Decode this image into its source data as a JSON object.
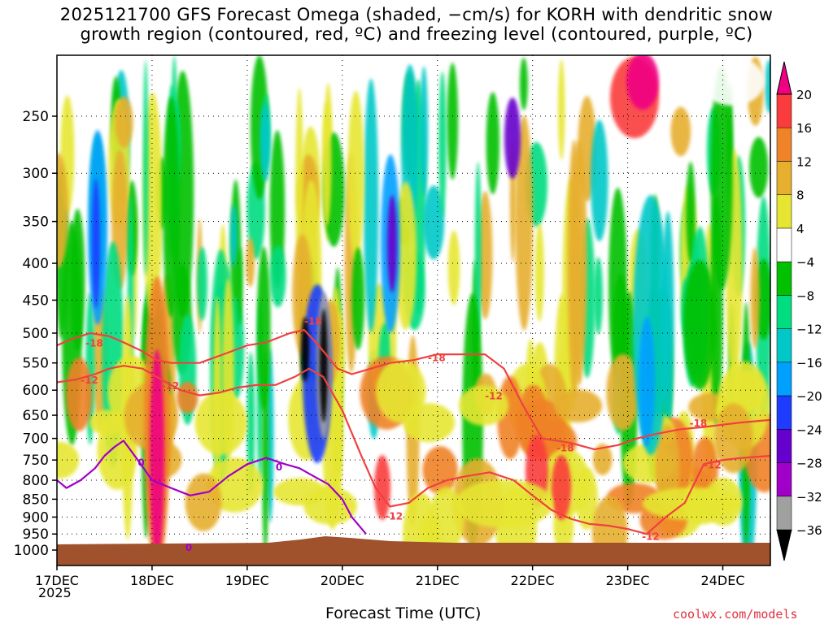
{
  "chart_data": {
    "type": "heatmap",
    "title_line1": "2025121700 GFS Forecast Omega (shaded, −cm/s) for KORH with dendritic snow",
    "title_line2": "growth region (contoured, red, ºC) and freezing level (contoured, purple, ºC)",
    "xlabel": "Forecast Time (UTC)",
    "ylabel": "",
    "year_label": "2025",
    "credit": "coolwx.com/models",
    "x_ticks": [
      "17DEC",
      "18DEC",
      "19DEC",
      "20DEC",
      "21DEC",
      "22DEC",
      "23DEC",
      "24DEC"
    ],
    "y_ticks": [
      250,
      300,
      350,
      400,
      450,
      500,
      550,
      600,
      650,
      700,
      750,
      800,
      850,
      900,
      950,
      1000
    ],
    "ylim": [
      200,
      1000
    ],
    "xlim": [
      0,
      7.5
    ],
    "colorbar_levels": [
      -36,
      -32,
      -28,
      -24,
      -20,
      -16,
      -12,
      -8,
      -4,
      4,
      8,
      12,
      16,
      20
    ],
    "colorbar_labels": [
      "20",
      "16",
      "12",
      "8",
      "4",
      "−4",
      "−8",
      "−12",
      "−16",
      "−20",
      "−24",
      "−28",
      "−32",
      "−36"
    ],
    "colorbar_colors": [
      "#000000",
      "#a0a0a0",
      "#a000c8",
      "#6600cc",
      "#1e3cff",
      "#00a0ff",
      "#00c8c8",
      "#00dc80",
      "#00c000",
      "#ffffff",
      "#e6e632",
      "#e6af2d",
      "#f08228",
      "#fa3c3c",
      "#f00082"
    ],
    "contour_labels": [
      {
        "text": "-18",
        "x": 0.3,
        "y": 515
      },
      {
        "text": "-12",
        "x": 0.25,
        "y": 580
      },
      {
        "text": "-12",
        "x": 1.1,
        "y": 590
      },
      {
        "text": "-18",
        "x": 2.6,
        "y": 480
      },
      {
        "text": "-18",
        "x": 3.9,
        "y": 540
      },
      {
        "text": "-12",
        "x": 4.5,
        "y": 610
      },
      {
        "text": "-18",
        "x": 5.25,
        "y": 720
      },
      {
        "text": "-12",
        "x": 3.45,
        "y": 895
      },
      {
        "text": "-12",
        "x": 6.15,
        "y": 955
      },
      {
        "text": "-18",
        "x": 6.65,
        "y": 665
      },
      {
        "text": "-12",
        "x": 6.8,
        "y": 760
      },
      {
        "text": "0",
        "x": 0.85,
        "y": 755
      },
      {
        "text": "0",
        "x": 2.3,
        "y": 765
      },
      {
        "text": "0",
        "x": 1.35,
        "y": 990
      }
    ],
    "series": [
      {
        "name": "-18C contour (dendritic upper)",
        "color": "#f04040",
        "x": [
          0.0,
          0.15,
          0.35,
          0.55,
          0.7,
          0.9,
          1.05,
          1.2,
          1.5,
          1.75,
          2.0,
          2.2,
          2.45,
          2.6,
          2.75,
          2.95,
          3.1,
          3.3,
          3.5,
          3.75,
          4.0,
          4.25,
          4.5,
          4.7,
          4.9,
          5.1,
          5.4,
          5.65,
          5.9,
          6.1,
          6.3,
          6.55,
          6.8,
          7.0,
          7.2,
          7.5
        ],
        "y": [
          520,
          510,
          500,
          505,
          515,
          530,
          545,
          550,
          550,
          535,
          520,
          515,
          500,
          495,
          520,
          560,
          570,
          560,
          550,
          545,
          535,
          535,
          535,
          560,
          630,
          700,
          710,
          725,
          715,
          700,
          690,
          680,
          675,
          670,
          665,
          660
        ]
      },
      {
        "name": "-12C contour (dendritic lower)",
        "color": "#f04040",
        "x": [
          0.0,
          0.2,
          0.4,
          0.55,
          0.7,
          0.9,
          1.1,
          1.3,
          1.5,
          1.7,
          1.9,
          2.1,
          2.3,
          2.5,
          2.65,
          2.8,
          3.0,
          3.2,
          3.35,
          3.5,
          3.7,
          3.9,
          4.1,
          4.3,
          4.55,
          4.8,
          5.0,
          5.2,
          5.4,
          5.6,
          5.8,
          6.0,
          6.2,
          6.4,
          6.6,
          6.8,
          7.0,
          7.2,
          7.5
        ],
        "y": [
          585,
          580,
          570,
          560,
          555,
          560,
          580,
          600,
          610,
          605,
          595,
          590,
          590,
          575,
          560,
          575,
          640,
          740,
          820,
          870,
          860,
          820,
          800,
          790,
          780,
          800,
          840,
          880,
          905,
          920,
          925,
          935,
          950,
          900,
          860,
          760,
          750,
          745,
          740
        ]
      },
      {
        "name": "0C freezing level",
        "color": "#a000c8",
        "x": [
          0.0,
          0.1,
          0.25,
          0.4,
          0.5,
          0.6,
          0.7,
          0.85,
          1.0,
          1.2,
          1.4,
          1.6,
          1.8,
          2.0,
          2.2,
          2.4,
          2.55,
          2.7,
          2.85,
          3.0,
          3.1,
          3.25
        ],
        "y": [
          800,
          820,
          800,
          770,
          740,
          720,
          705,
          750,
          800,
          820,
          840,
          830,
          790,
          760,
          745,
          760,
          770,
          790,
          810,
          850,
          900,
          950
        ]
      }
    ]
  }
}
